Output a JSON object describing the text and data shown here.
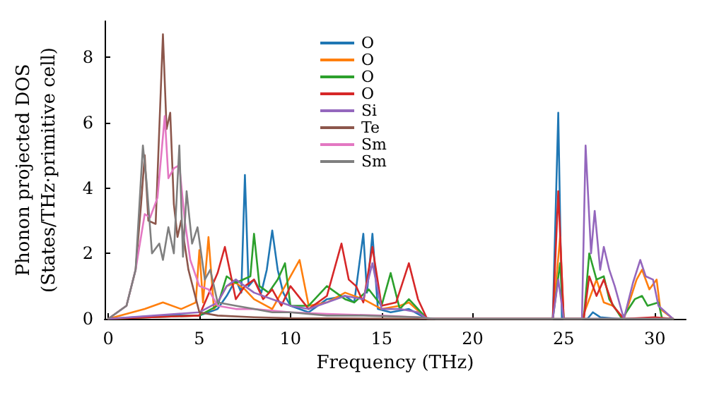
{
  "chart_data": {
    "type": "line",
    "xlabel": "Frequency (THz)",
    "ylabel": "Phonon projected DOS\n(States/THz·primitive cell)",
    "xlim": [
      -0.2,
      31.7
    ],
    "ylim": [
      0,
      9.1
    ],
    "xticks": [
      0,
      5,
      10,
      15,
      20,
      25,
      30
    ],
    "yticks": [
      0,
      2,
      4,
      6,
      8
    ],
    "grid": false,
    "legend": "top",
    "marker": "none",
    "line_style": "solid",
    "series": [
      {
        "name": "O",
        "color": "#1f77b4",
        "x": [
          0,
          3,
          5,
          5.5,
          6,
          6.5,
          7,
          7.3,
          7.5,
          7.7,
          8,
          8.4,
          8.7,
          9,
          9.3,
          9.6,
          10,
          11,
          12,
          13,
          13.5,
          14,
          14.2,
          14.5,
          14.8,
          15.5,
          16.5,
          17.5,
          24.4,
          24.7,
          24.9,
          26.3,
          26.6,
          27,
          28,
          31
        ],
        "values": [
          0,
          0.1,
          0.1,
          0.2,
          0.3,
          0.7,
          1.2,
          0.8,
          4.4,
          1,
          1.2,
          0.8,
          1.5,
          2.7,
          1.5,
          0.8,
          0.4,
          0.2,
          0.6,
          0.7,
          0.5,
          2.6,
          0.8,
          2.6,
          0.3,
          0.2,
          0.3,
          0,
          0,
          6.3,
          0,
          0,
          0.2,
          0.05,
          0,
          0
        ]
      },
      {
        "name": "O",
        "color": "#ff7f0e",
        "x": [
          0,
          2,
          3,
          4,
          4.8,
          5,
          5.2,
          5.5,
          5.8,
          6.5,
          7,
          7.5,
          8,
          9,
          10.5,
          11,
          12,
          13,
          14,
          15,
          16,
          16.5,
          17.5,
          24.4,
          24.8,
          25,
          26,
          26.4,
          26.8,
          27.2,
          27.7,
          28.3,
          29,
          29.3,
          29.7,
          30.1,
          30.3,
          31
        ],
        "values": [
          0,
          0.3,
          0.5,
          0.3,
          0.5,
          2.1,
          0.5,
          2.5,
          0.3,
          1,
          1.1,
          0.9,
          0.6,
          0.3,
          1.8,
          0.4,
          0.5,
          0.8,
          0.6,
          0.3,
          0.4,
          0.5,
          0,
          0,
          2.5,
          0,
          0,
          0.6,
          1.2,
          0.5,
          0.4,
          0,
          1.2,
          1.5,
          0.9,
          1.2,
          0.3,
          0
        ]
      },
      {
        "name": "O",
        "color": "#2ca02c",
        "x": [
          0,
          5,
          6,
          6.5,
          7,
          7.8,
          8,
          8.3,
          8.8,
          9.3,
          9.7,
          10,
          11,
          12,
          13,
          13.5,
          14.3,
          15,
          15.5,
          16,
          16.5,
          17.5,
          24.4,
          24.8,
          25,
          26.1,
          26.4,
          26.8,
          27.2,
          27.5,
          28.2,
          28.9,
          29.3,
          29.6,
          30.2,
          30.4,
          31
        ],
        "values": [
          0,
          0.1,
          0.4,
          1.3,
          1.1,
          1.3,
          2.6,
          1,
          0.8,
          1.2,
          1.7,
          0.4,
          0.4,
          1,
          0.6,
          0.5,
          0.9,
          0.4,
          1.4,
          0.3,
          0.6,
          0,
          0,
          1.7,
          0,
          0,
          2,
          1.2,
          1.3,
          0.6,
          0,
          0.6,
          0.7,
          0.4,
          0.5,
          0,
          0
        ]
      },
      {
        "name": "O",
        "color": "#d62728",
        "x": [
          0,
          5,
          6,
          6.4,
          7,
          7.5,
          8,
          8.5,
          9,
          9.5,
          10,
          11,
          12,
          12.8,
          13.2,
          13.6,
          14,
          14.5,
          15,
          15.8,
          16.5,
          17,
          17.5,
          24.4,
          24.7,
          25,
          26.1,
          26.4,
          26.8,
          27.2,
          27.7,
          28.3,
          30,
          31
        ],
        "values": [
          0,
          0.1,
          1.4,
          2.2,
          0.6,
          1,
          1.2,
          0.6,
          0.9,
          0.4,
          1,
          0.3,
          0.7,
          2.3,
          1.2,
          1,
          0.5,
          2.2,
          0.4,
          0.5,
          1.7,
          0.6,
          0,
          0,
          3.9,
          0,
          0,
          1.3,
          0.7,
          1.2,
          0.4,
          0,
          0.05,
          0
        ]
      },
      {
        "name": "Si",
        "color": "#9467bd",
        "x": [
          0,
          5,
          6,
          6.5,
          7,
          7.5,
          8,
          9,
          10,
          11,
          12,
          13,
          14,
          14.5,
          15,
          16,
          17,
          17.5,
          24.4,
          24.7,
          25,
          26,
          26.2,
          26.5,
          26.7,
          27,
          27.2,
          27.5,
          27.8,
          28.3,
          28.8,
          29.2,
          29.5,
          29.9,
          30.2,
          31
        ],
        "values": [
          0,
          0.2,
          0.5,
          1,
          1.2,
          1,
          0.8,
          0.6,
          0.4,
          0.3,
          0.5,
          0.7,
          0.6,
          1.7,
          0.3,
          0.3,
          0.2,
          0,
          0,
          1.2,
          0,
          0,
          5.3,
          2,
          3.3,
          1.5,
          2.2,
          1.5,
          1,
          0,
          1.1,
          1.8,
          1.3,
          1.2,
          0.4,
          0
        ]
      },
      {
        "name": "Te",
        "color": "#8c564b",
        "x": [
          0,
          1,
          1.5,
          1.8,
          2,
          2.2,
          2.6,
          3,
          3.2,
          3.4,
          3.6,
          3.8,
          4,
          4.4,
          5,
          6,
          8,
          10,
          17.5,
          31
        ],
        "values": [
          0,
          0.4,
          1.5,
          3.5,
          5,
          3,
          2.9,
          8.7,
          5.8,
          6.3,
          3.5,
          2.5,
          3,
          1.5,
          0.2,
          0.1,
          0.05,
          0.02,
          0,
          0
        ]
      },
      {
        "name": "Sm",
        "color": "#e377c2",
        "x": [
          0,
          1,
          1.5,
          2,
          2.3,
          2.7,
          3.1,
          3.3,
          3.6,
          3.9,
          4.2,
          4.5,
          5,
          5.5,
          6,
          7,
          8,
          10,
          12,
          15,
          17,
          18,
          31
        ],
        "values": [
          0,
          0.4,
          1.5,
          3.2,
          3.1,
          3.7,
          6.2,
          4.3,
          4.6,
          4.7,
          3,
          1.8,
          1,
          0.9,
          0.4,
          0.3,
          0.3,
          0.2,
          0.15,
          0.1,
          0.05,
          0,
          0
        ]
      },
      {
        "name": "Sm",
        "color": "#7f7f7f",
        "x": [
          0,
          1,
          1.5,
          1.9,
          2.1,
          2.4,
          2.8,
          3,
          3.3,
          3.6,
          3.9,
          4.1,
          4.3,
          4.6,
          4.9,
          5.3,
          5.6,
          6,
          7,
          8,
          9,
          10,
          12,
          14,
          17,
          18,
          31
        ],
        "values": [
          0,
          0.4,
          1.5,
          5.3,
          4.2,
          2,
          2.3,
          1.8,
          2.8,
          2,
          5.3,
          1.9,
          3.9,
          2.3,
          2.8,
          1.2,
          1.5,
          0.5,
          0.4,
          0.3,
          0.2,
          0.2,
          0.1,
          0.1,
          0.05,
          0,
          0
        ]
      }
    ]
  }
}
